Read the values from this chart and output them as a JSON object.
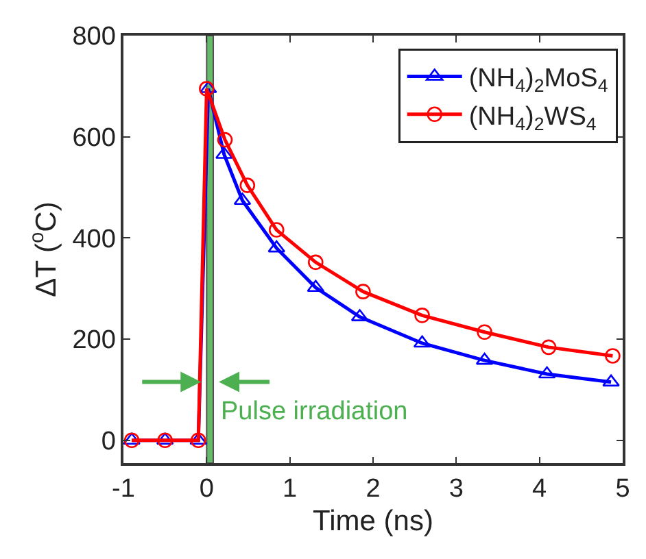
{
  "chart_data": {
    "type": "line",
    "xlabel": "Time (ns)",
    "ylabel": "ΔT ($^{o}$C)",
    "xlim": [
      -1,
      5
    ],
    "xticks": [
      -1,
      0,
      1,
      2,
      3,
      4,
      5
    ],
    "ylim": [
      -45,
      800
    ],
    "yticks": [
      0,
      200,
      400,
      600,
      800
    ],
    "grid": false,
    "legend": "top right",
    "line_style": "solid",
    "series": [
      {
        "name": "(NH$_{4}$)$_{2}$MoS$_{4}$",
        "color": "#0000ff",
        "marker": "triangle",
        "x": [
          -0.9,
          -0.5,
          -0.1,
          0.02,
          0.21,
          0.43,
          0.84,
          1.31,
          1.84,
          2.59,
          3.34,
          4.09,
          4.86
        ],
        "values": [
          0,
          0,
          0,
          695,
          565,
          474,
          380,
          302,
          244,
          192,
          158,
          131,
          115
        ]
      },
      {
        "name": "(NH$_{4}$)$_{2}$WS$_{4}$",
        "color": "#ff0000",
        "marker": "circle",
        "x": [
          -0.9,
          -0.5,
          -0.1,
          0.0,
          0.22,
          0.49,
          0.84,
          1.31,
          1.88,
          2.59,
          3.34,
          4.11,
          4.88
        ],
        "values": [
          0,
          0,
          0,
          695,
          594,
          504,
          416,
          352,
          294,
          247,
          214,
          184,
          167
        ]
      }
    ],
    "bands": [
      {
        "axis": "x",
        "from": 0,
        "to": 0.08,
        "label": "Pulse irradiation",
        "color": "#4caf50"
      }
    ]
  }
}
